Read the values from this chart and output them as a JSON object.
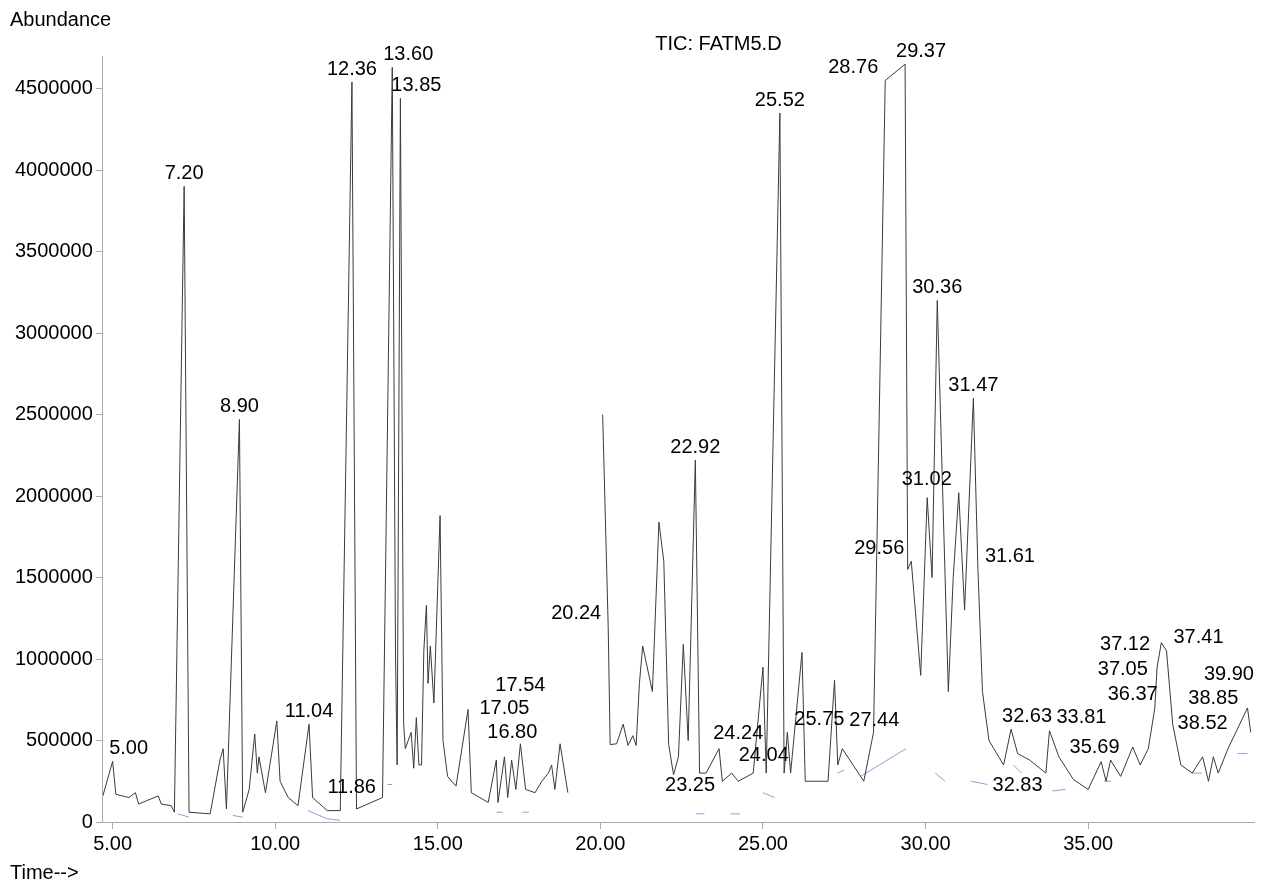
{
  "chart_data": {
    "type": "line",
    "title": "TIC: FATM5.D",
    "xlabel": "Time-->",
    "ylabel": "Abundance",
    "xlim": [
      4.7,
      40.1
    ],
    "ylim": [
      0,
      4700000
    ],
    "xticks": [
      {
        "value": 5,
        "label": "5.00"
      },
      {
        "value": 10,
        "label": "10.00"
      },
      {
        "value": 15,
        "label": "15.00"
      },
      {
        "value": 20,
        "label": "20.00"
      },
      {
        "value": 25,
        "label": "25.00"
      },
      {
        "value": 30,
        "label": "30.00"
      },
      {
        "value": 35,
        "label": "35.00"
      }
    ],
    "yticks": [
      0,
      500000,
      1000000,
      1500000,
      2000000,
      2500000,
      3000000,
      3500000,
      4000000,
      4500000
    ],
    "grid": false,
    "legend": false,
    "marker": "none",
    "series": [
      {
        "color": "#3a3a3a",
        "x": [
          4.7,
          5.0,
          5.1,
          5.5,
          5.7,
          5.8,
          6.4,
          6.5,
          6.8,
          6.9,
          7.2,
          7.35,
          8.0,
          8.3,
          8.4,
          8.5,
          8.9,
          9.0,
          9.2,
          9.37,
          9.45,
          9.5,
          9.7,
          10.05,
          10.15,
          10.4,
          10.7,
          11.04,
          11.15,
          11.6,
          12.0,
          12.36,
          12.5,
          13.3,
          13.6,
          13.7,
          13.75,
          13.85,
          13.95,
          14.0,
          14.18,
          14.26,
          14.34,
          14.42,
          14.5,
          14.57,
          14.65,
          14.7,
          14.77,
          14.88,
          15.07,
          15.16,
          15.3,
          15.56,
          15.93,
          16.03,
          16.55,
          16.8,
          16.85,
          17.05,
          17.15,
          17.27,
          17.4,
          17.54,
          17.7,
          17.99,
          18.2,
          18.4,
          18.5,
          18.6,
          18.76,
          19.0,
          19.37,
          19.9,
          20.07,
          20.24,
          20.3,
          20.5,
          20.7,
          20.85,
          21.0,
          21.1,
          21.2,
          21.3,
          21.6,
          21.8,
          21.95,
          22.1,
          22.25,
          22.4,
          22.55,
          22.7,
          22.92,
          23.05,
          23.25,
          23.65,
          23.75,
          24.04,
          24.24,
          24.7,
          25.0,
          25.1,
          25.52,
          25.65,
          25.75,
          25.85,
          26.2,
          26.3,
          27.0,
          27.2,
          27.3,
          27.44,
          28.1,
          28.4,
          28.76,
          29.37,
          29.45,
          29.56,
          29.85,
          30.05,
          30.2,
          30.36,
          30.7,
          30.85,
          31.02,
          31.2,
          31.47,
          31.61,
          31.75,
          31.95,
          32.4,
          32.63,
          32.83,
          33.2,
          33.7,
          33.81,
          34.1,
          34.55,
          35.0,
          35.4,
          35.55,
          35.69,
          36.0,
          36.37,
          36.6,
          36.85,
          37.05,
          37.12,
          37.25,
          37.41,
          37.6,
          37.85,
          38.2,
          38.52,
          38.7,
          38.85,
          39.0,
          39.3,
          39.9,
          40.0
        ],
        "values": [
          160000,
          372000,
          170000,
          150000,
          180000,
          110000,
          160000,
          110000,
          100000,
          60000,
          3900000,
          60000,
          50000,
          380000,
          450000,
          80000,
          2470000,
          60000,
          200000,
          540000,
          300000,
          400000,
          180000,
          620000,
          250000,
          150000,
          100000,
          600000,
          150000,
          70000,
          70000,
          4540000,
          80000,
          150000,
          4630000,
          1020000,
          350000,
          4440000,
          600000,
          450000,
          550000,
          330000,
          640000,
          350000,
          350000,
          1050000,
          1330000,
          850000,
          1080000,
          730000,
          1880000,
          500000,
          280000,
          220000,
          690000,
          180000,
          120000,
          380000,
          120000,
          400000,
          150000,
          380000,
          200000,
          480000,
          200000,
          180000,
          250000,
          300000,
          350000,
          200000,
          480000,
          180000,
          null,
          null,
          2500000,
          1200000,
          475000,
          480000,
          600000,
          470000,
          530000,
          470000,
          850000,
          1080000,
          800000,
          1840000,
          1600000,
          475000,
          290000,
          400000,
          1090000,
          500000,
          2220000,
          300000,
          300000,
          450000,
          250000,
          300000,
          250000,
          300000,
          950000,
          300000,
          4350000,
          300000,
          550000,
          300000,
          1040000,
          250000,
          250000,
          870000,
          350000,
          450000,
          250000,
          550000,
          4550000,
          4650000,
          1550000,
          1600000,
          900000,
          1990000,
          1500000,
          3200000,
          800000,
          1500000,
          2020000,
          1300000,
          2600000,
          1550000,
          800000,
          500000,
          350000,
          570000,
          420000,
          380000,
          300000,
          560000,
          400000,
          260000,
          200000,
          370000,
          250000,
          380000,
          280000,
          460000,
          350000,
          450000,
          700000,
          950000,
          1100000,
          1050000,
          600000,
          350000,
          300000,
          400000,
          250000,
          400000,
          300000,
          450000,
          700000,
          550000
        ]
      },
      {
        "color": "#9999dd",
        "x": [
          7.0,
          7.35,
          7.5,
          8.7,
          9.0,
          9.1,
          11.0,
          11.6,
          12.0,
          12.1,
          13.45,
          13.6,
          13.7,
          16.8,
          17.0,
          17.1,
          17.6,
          17.8,
          17.9,
          22.95,
          23.2,
          23.3,
          24.0,
          24.3,
          24.4,
          25.0,
          25.35,
          25.4,
          27.3,
          27.5,
          27.6,
          28.0,
          29.4,
          29.5,
          30.3,
          30.6,
          30.7,
          31.4,
          31.9,
          32.0,
          32.7,
          32.95,
          33.0,
          33.9,
          34.3,
          34.4,
          35.5,
          35.7,
          35.8,
          38.2,
          38.5,
          38.6,
          39.6,
          39.9
        ],
        "values": [
          50000,
          30000,
          null,
          40000,
          30000,
          null,
          70000,
          20000,
          10000,
          null,
          230000,
          230000,
          null,
          60000,
          60000,
          null,
          60000,
          60000,
          null,
          50000,
          50000,
          null,
          50000,
          50000,
          null,
          180000,
          150000,
          null,
          300000,
          320000,
          null,
          280000,
          450000,
          null,
          300000,
          250000,
          null,
          250000,
          230000,
          null,
          350000,
          300000,
          null,
          190000,
          200000,
          null,
          250000,
          250000,
          null,
          300000,
          300000,
          null,
          420000,
          420000
        ]
      }
    ],
    "annotations": [
      {
        "text": "5.00",
        "x": 5.0,
        "y": 372000
      },
      {
        "text": "7.20",
        "x": 7.2,
        "y": 3900000
      },
      {
        "text": "8.90",
        "x": 8.9,
        "y": 2470000
      },
      {
        "text": "11.04",
        "x": 11.04,
        "y": 600000
      },
      {
        "text": "11.86",
        "x": 11.86,
        "y": 70000
      },
      {
        "text": "12.36",
        "x": 12.36,
        "y": 4540000
      },
      {
        "text": "13.60",
        "x": 13.6,
        "y": 4630000
      },
      {
        "text": "13.85",
        "x": 13.85,
        "y": 4440000
      },
      {
        "text": "16.80",
        "x": 16.8,
        "y": 380000
      },
      {
        "text": "17.05",
        "x": 17.05,
        "y": 400000
      },
      {
        "text": "17.54",
        "x": 17.54,
        "y": 480000
      },
      {
        "text": "20.24",
        "x": 20.24,
        "y": 1200000
      },
      {
        "text": "22.92",
        "x": 22.92,
        "y": 2220000
      },
      {
        "text": "23.25",
        "x": 23.25,
        "y": 300000
      },
      {
        "text": "24.04",
        "x": 24.04,
        "y": 300000
      },
      {
        "text": "24.24",
        "x": 24.24,
        "y": 250000
      },
      {
        "text": "25.52",
        "x": 25.52,
        "y": 4350000
      },
      {
        "text": "25.75",
        "x": 25.75,
        "y": 550000
      },
      {
        "text": "27.44",
        "x": 27.44,
        "y": 450000
      },
      {
        "text": "28.76",
        "x": 28.76,
        "y": 4550000
      },
      {
        "text": "29.37",
        "x": 29.37,
        "y": 4650000
      },
      {
        "text": "29.56",
        "x": 29.56,
        "y": 1600000
      },
      {
        "text": "30.36",
        "x": 30.36,
        "y": 3200000
      },
      {
        "text": "31.02",
        "x": 31.02,
        "y": 2020000
      },
      {
        "text": "31.47",
        "x": 31.47,
        "y": 2600000
      },
      {
        "text": "31.61",
        "x": 31.61,
        "y": 1550000
      },
      {
        "text": "32.63",
        "x": 32.63,
        "y": 570000
      },
      {
        "text": "32.83",
        "x": 32.83,
        "y": 420000
      },
      {
        "text": "33.81",
        "x": 33.81,
        "y": 560000
      },
      {
        "text": "35.69",
        "x": 35.69,
        "y": 380000
      },
      {
        "text": "36.37",
        "x": 36.37,
        "y": 460000
      },
      {
        "text": "37.05",
        "x": 37.05,
        "y": 700000
      },
      {
        "text": "37.12",
        "x": 37.12,
        "y": 950000
      },
      {
        "text": "37.41",
        "x": 37.41,
        "y": 1050000
      },
      {
        "text": "38.52",
        "x": 38.52,
        "y": 400000
      },
      {
        "text": "38.85",
        "x": 38.85,
        "y": 400000
      },
      {
        "text": "39.90",
        "x": 39.9,
        "y": 700000
      }
    ]
  }
}
